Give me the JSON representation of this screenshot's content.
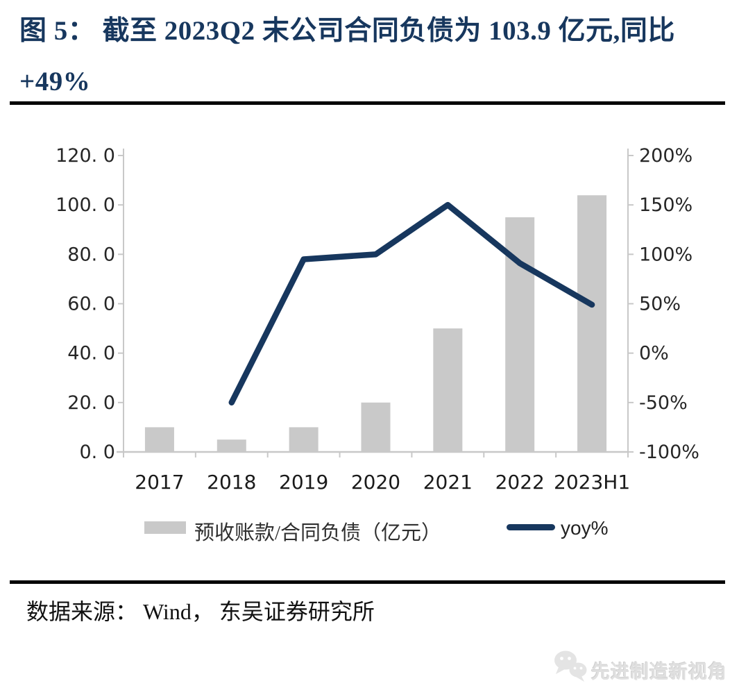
{
  "figure": {
    "title_line1": "图 5： 截至 2023Q2 末公司合同负债为 103.9 亿元,同比",
    "title_line2": "+49%",
    "source": "数据来源： Wind， 东吴证券研究所",
    "watermark": "先进制造新视角",
    "watermark_icon": "wechat-bubbles-icon"
  },
  "chart_data": {
    "type": "bar",
    "subtype": "bar+line combo, dual axis",
    "title": "截至 2023Q2 末公司合同负债为 103.9 亿元，同比 +49%",
    "categories": [
      "2017",
      "2018",
      "2019",
      "2020",
      "2021",
      "2022",
      "2023H1"
    ],
    "series": [
      {
        "name": "预收账款/合同负债（亿元）",
        "type": "bar",
        "axis": "left",
        "color": "#c9c9c9",
        "values": [
          10,
          5,
          10,
          20,
          50,
          95,
          103.9
        ]
      },
      {
        "name": "yoy%",
        "type": "line",
        "axis": "right",
        "color": "#17375e",
        "values": [
          null,
          -50,
          95,
          100,
          150,
          91,
          49
        ]
      }
    ],
    "left_axis": {
      "min": 0,
      "max": 120,
      "step": 20,
      "tick_labels": [
        "120. 0",
        "100. 0",
        "80. 0",
        "60. 0",
        "40. 0",
        "20. 0",
        "0. 0"
      ]
    },
    "right_axis": {
      "min": -100,
      "max": 200,
      "step": 50,
      "tick_labels": [
        "200%",
        "150%",
        "100%",
        "50%",
        "0%",
        "-50%",
        "-100%"
      ]
    },
    "grid": false,
    "legend_position": "bottom",
    "axis_color": "#c8c8c8",
    "tick_label_color": "#262626"
  }
}
